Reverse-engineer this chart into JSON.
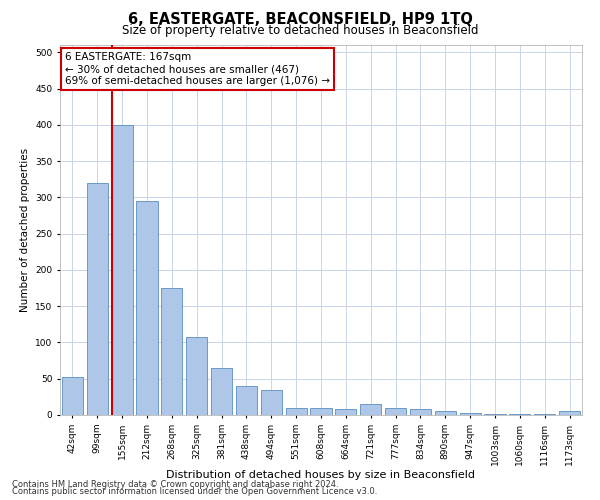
{
  "title": "6, EASTERGATE, BEACONSFIELD, HP9 1TQ",
  "subtitle": "Size of property relative to detached houses in Beaconsfield",
  "xlabel": "Distribution of detached houses by size in Beaconsfield",
  "ylabel": "Number of detached properties",
  "categories": [
    "42sqm",
    "99sqm",
    "155sqm",
    "212sqm",
    "268sqm",
    "325sqm",
    "381sqm",
    "438sqm",
    "494sqm",
    "551sqm",
    "608sqm",
    "664sqm",
    "721sqm",
    "777sqm",
    "834sqm",
    "890sqm",
    "947sqm",
    "1003sqm",
    "1060sqm",
    "1116sqm",
    "1173sqm"
  ],
  "values": [
    52,
    320,
    400,
    295,
    175,
    107,
    65,
    40,
    35,
    10,
    10,
    8,
    15,
    10,
    8,
    6,
    3,
    1,
    1,
    1,
    5
  ],
  "bar_color": "#aec6e8",
  "bar_edge_color": "#5a8fc0",
  "vline_x_index": 2,
  "vline_color": "#cc0000",
  "annotation_line1": "6 EASTERGATE: 167sqm",
  "annotation_line2": "← 30% of detached houses are smaller (467)",
  "annotation_line3": "69% of semi-detached houses are larger (1,076) →",
  "annotation_box_color": "#ffffff",
  "annotation_box_edge": "#cc0000",
  "ylim": [
    0,
    510
  ],
  "yticks": [
    0,
    50,
    100,
    150,
    200,
    250,
    300,
    350,
    400,
    450,
    500
  ],
  "footer1": "Contains HM Land Registry data © Crown copyright and database right 2024.",
  "footer2": "Contains public sector information licensed under the Open Government Licence v3.0.",
  "background_color": "#ffffff",
  "grid_color": "#c8d4e8",
  "title_fontsize": 10.5,
  "subtitle_fontsize": 8.5,
  "xlabel_fontsize": 8,
  "ylabel_fontsize": 7.5,
  "tick_fontsize": 6.5,
  "annotation_fontsize": 7.5,
  "footer_fontsize": 6
}
